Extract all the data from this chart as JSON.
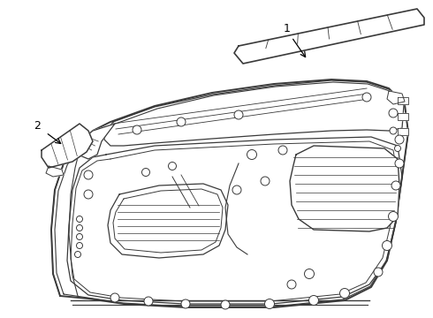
{
  "background_color": "#ffffff",
  "line_color": "#3a3a3a",
  "line_width": 1.0,
  "label1": "1",
  "label2": "2",
  "fig_width": 4.9,
  "fig_height": 3.6,
  "dpi": 100
}
